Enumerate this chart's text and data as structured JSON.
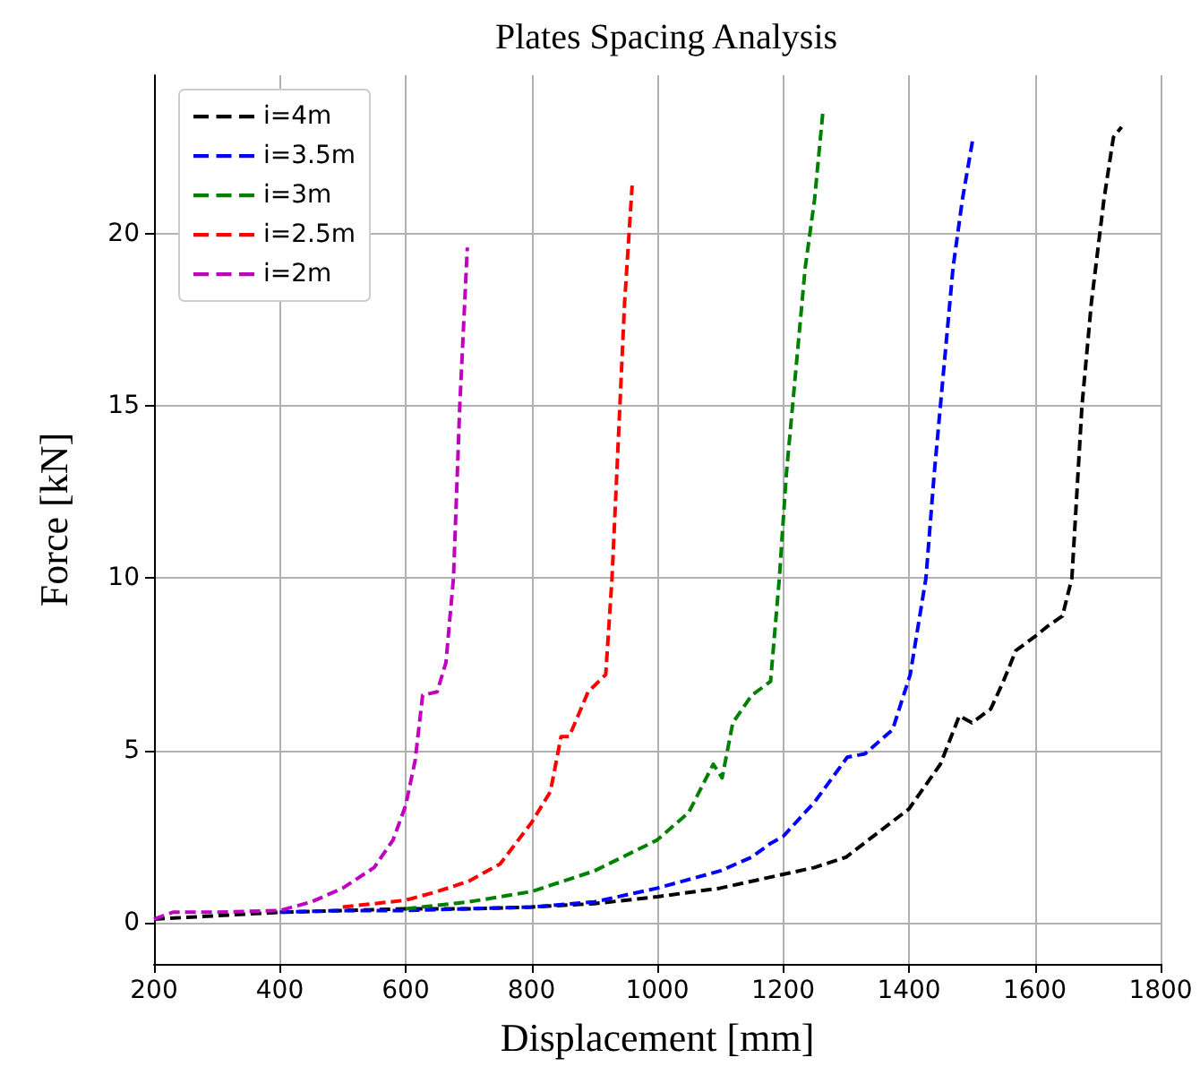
{
  "chart_data": {
    "type": "line",
    "title": "Plates Spacing Analysis",
    "xlabel": "Displacement [mm]",
    "ylabel": "Force [kN]",
    "xlim": [
      200,
      1800
    ],
    "xticks": [
      200,
      400,
      600,
      800,
      1000,
      1200,
      1400,
      1600,
      1800
    ],
    "ylim": [
      -1.2,
      24.6
    ],
    "yticks": [
      0,
      5,
      10,
      15,
      20
    ],
    "grid": true,
    "legend": "top left",
    "marker": "none",
    "line_style": "dashed",
    "series": [
      {
        "name": "i=4m",
        "color": "#000000",
        "x": [
          200,
          400,
          500,
          600,
          700,
          800,
          900,
          1000,
          1100,
          1200,
          1250,
          1300,
          1350,
          1400,
          1450,
          1480,
          1500,
          1530,
          1550,
          1570,
          1600,
          1620,
          1644,
          1659,
          1675,
          1690,
          1710,
          1725,
          1738
        ],
        "values": [
          0.1,
          0.3,
          0.35,
          0.4,
          0.4,
          0.45,
          0.55,
          0.75,
          1.0,
          1.4,
          1.6,
          1.9,
          2.6,
          3.3,
          4.6,
          6.0,
          5.8,
          6.2,
          7.0,
          7.9,
          8.3,
          8.6,
          8.9,
          10,
          15,
          18,
          21,
          22.8,
          23.1
        ]
      },
      {
        "name": "i=3.5m",
        "color": "#0000ff",
        "x": [
          400,
          500,
          600,
          700,
          800,
          900,
          1000,
          1100,
          1150,
          1180,
          1200,
          1250,
          1302,
          1330,
          1374,
          1402,
          1427,
          1440,
          1455,
          1470,
          1485,
          1502
        ],
        "values": [
          0.3,
          0.35,
          0.35,
          0.4,
          0.45,
          0.6,
          1.0,
          1.5,
          1.9,
          2.3,
          2.5,
          3.5,
          4.8,
          4.9,
          5.6,
          7.2,
          10,
          13,
          16,
          19,
          21,
          22.8
        ]
      },
      {
        "name": "i=3m",
        "color": "#008000",
        "x": [
          600,
          700,
          800,
          900,
          1000,
          1050,
          1089,
          1103,
          1120,
          1150,
          1180,
          1194,
          1205,
          1220,
          1235,
          1250,
          1263
        ],
        "values": [
          0.4,
          0.6,
          0.9,
          1.5,
          2.4,
          3.2,
          4.6,
          4.2,
          5.8,
          6.6,
          7.0,
          10,
          13,
          16,
          19,
          21,
          23.5
        ]
      },
      {
        "name": "i=2.5m",
        "color": "#ff0000",
        "x": [
          500,
          600,
          650,
          700,
          750,
          800,
          830,
          847,
          860,
          890,
          918,
          928,
          938,
          948,
          960
        ],
        "values": [
          0.45,
          0.65,
          0.9,
          1.2,
          1.7,
          2.9,
          3.8,
          5.4,
          5.4,
          6.7,
          7.2,
          10,
          14,
          18,
          21.4
        ]
      },
      {
        "name": "i=2m",
        "color": "#bf00bf",
        "x": [
          200,
          230,
          300,
          400,
          450,
          500,
          550,
          580,
          600,
          615,
          627,
          650,
          664,
          676,
          686,
          698
        ],
        "values": [
          0.1,
          0.3,
          0.3,
          0.35,
          0.6,
          1.0,
          1.6,
          2.4,
          3.4,
          4.7,
          6.6,
          6.7,
          7.55,
          10,
          15,
          19.6
        ]
      }
    ]
  }
}
